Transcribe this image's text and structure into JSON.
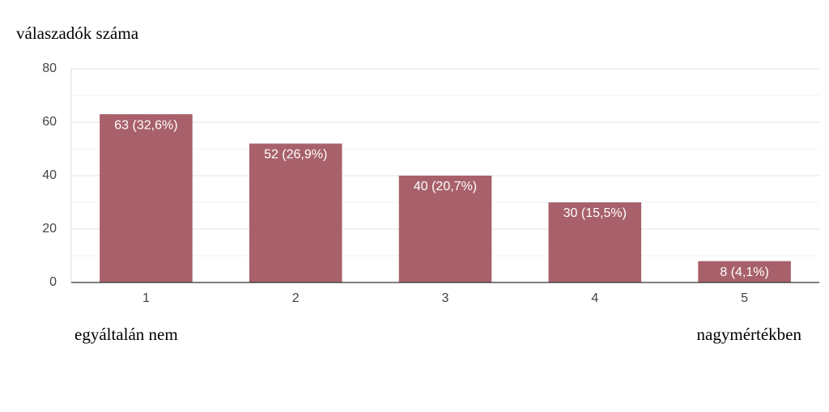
{
  "chart_data": {
    "type": "bar",
    "y_label": "válaszadók száma",
    "categories": [
      "1",
      "2",
      "3",
      "4",
      "5"
    ],
    "values": [
      63,
      52,
      40,
      30,
      8
    ],
    "value_labels": [
      "63 (32,6%)",
      "52 (26,9%)",
      "40 (20,7%)",
      "30 (15,5%)",
      "8 (4,1%)"
    ],
    "color": "#a8616b",
    "ylim": [
      0,
      80
    ],
    "yticks": [
      0,
      20,
      40,
      60,
      80
    ],
    "minor_yticks": [
      10,
      30,
      50,
      70
    ],
    "grid": true,
    "annotations": [
      "egyáltalán nem",
      "nagymértékben"
    ]
  }
}
